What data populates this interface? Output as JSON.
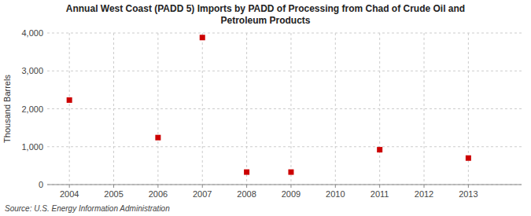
{
  "chart_data": {
    "type": "scatter",
    "title": "Annual West Coast (PADD 5) Imports by PADD of Processing from Chad of Crude Oil and\nPetroleum Products",
    "ylabel": "Thousand Barrels",
    "source": "Source: U.S. Energy Information Administration",
    "x": [
      2004,
      2005,
      2006,
      2007,
      2008,
      2009,
      2010,
      2011,
      2012,
      2013
    ],
    "values": [
      2230,
      null,
      1240,
      3880,
      330,
      330,
      null,
      920,
      null,
      700
    ],
    "color": "#cc0000",
    "marker": "square",
    "xlim": [
      2003.5,
      2014.2
    ],
    "ylim": [
      0,
      4000
    ],
    "xticks": [
      2004,
      2005,
      2006,
      2007,
      2008,
      2009,
      2010,
      2011,
      2012,
      2013
    ],
    "yticks": [
      0,
      {
        "value": 1000,
        "label": "1,000"
      },
      {
        "value": 2000,
        "label": "2,000"
      },
      {
        "value": 3000,
        "label": "3,000"
      },
      {
        "value": 4000,
        "label": "4,000"
      }
    ],
    "grid": true
  }
}
